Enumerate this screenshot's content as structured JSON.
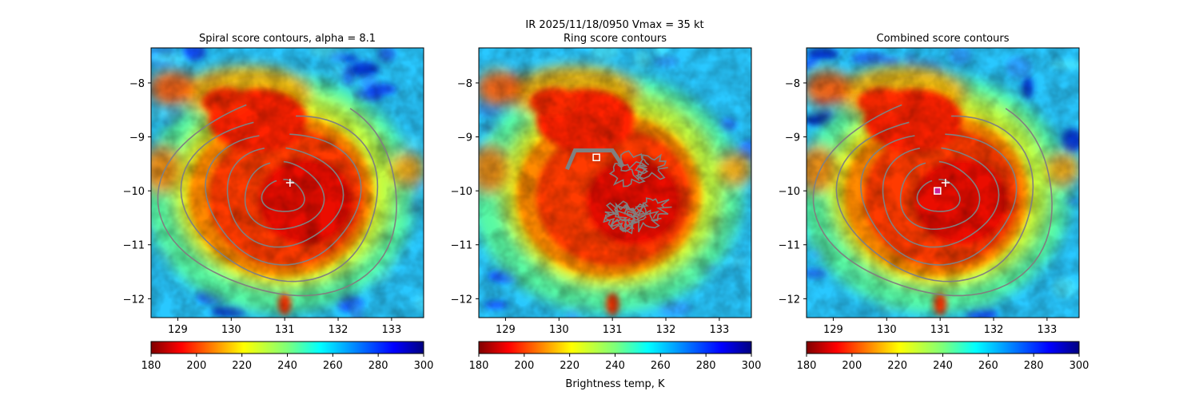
{
  "figure": {
    "suptitle_line1": "IR  2025/11/18/0950    Vmax = 35 kt",
    "colorbar_label": "Brightness temp, K",
    "colormap": "jet_r"
  },
  "chart_data": [
    {
      "type": "heatmap",
      "title": "Spiral score contours, alpha =  8.1",
      "xlim": [
        128.5,
        133.6
      ],
      "ylim": [
        -12.35,
        -7.35
      ],
      "xticks": [
        "129",
        "130",
        "131",
        "132",
        "133"
      ],
      "yticks": [
        "−8",
        "−9",
        "−10",
        "−11",
        "−12"
      ],
      "contours": "spiral",
      "markers": [
        {
          "kind": "plus",
          "x": 131.1,
          "y": -9.85
        }
      ],
      "colorbar": {
        "range": [
          180,
          300
        ],
        "ticks": [
          "180",
          "200",
          "220",
          "240",
          "260",
          "280",
          "300"
        ]
      }
    },
    {
      "type": "heatmap",
      "title": "Ring score contours",
      "xlim": [
        128.5,
        133.6
      ],
      "ylim": [
        -12.35,
        -7.35
      ],
      "xticks": [
        "129",
        "130",
        "131",
        "132",
        "133"
      ],
      "yticks": [
        "−8",
        "−9",
        "−10",
        "−11",
        "−12"
      ],
      "contours": "ring",
      "markers": [
        {
          "kind": "square",
          "x": 130.7,
          "y": -9.38
        }
      ],
      "colorbar": {
        "range": [
          180,
          300
        ],
        "ticks": [
          "180",
          "200",
          "220",
          "240",
          "260",
          "280",
          "300"
        ]
      }
    },
    {
      "type": "heatmap",
      "title": "Combined score contours",
      "xlim": [
        128.5,
        133.6
      ],
      "ylim": [
        -12.35,
        -7.35
      ],
      "xticks": [
        "129",
        "130",
        "131",
        "132",
        "133"
      ],
      "yticks": [
        "−8",
        "−9",
        "−10",
        "−11",
        "−12"
      ],
      "contours": "spiral",
      "markers": [
        {
          "kind": "plus",
          "x": 131.1,
          "y": -9.85
        },
        {
          "kind": "square",
          "x": 130.95,
          "y": -10.0
        }
      ],
      "colorbar": {
        "range": [
          180,
          300
        ],
        "ticks": [
          "180",
          "200",
          "220",
          "240",
          "260",
          "280",
          "300"
        ]
      }
    }
  ]
}
